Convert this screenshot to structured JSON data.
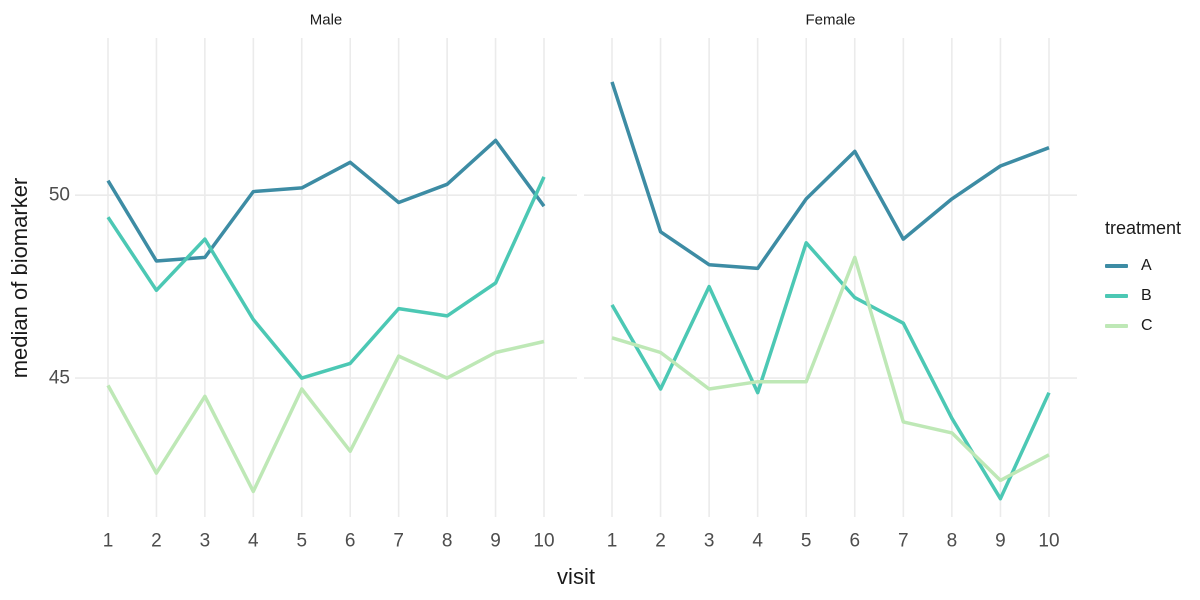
{
  "figure": {
    "background": "#ffffff",
    "grid_color": "#ebebeb",
    "tick_text_color": "#4d4d4d",
    "title_text_color": "#1a1a1a"
  },
  "legend": {
    "title": "treatment",
    "entries": [
      {
        "label": "A",
        "color": "#3d8ca4"
      },
      {
        "label": "B",
        "color": "#4cc8b4"
      },
      {
        "label": "C",
        "color": "#bee8b6"
      }
    ]
  },
  "chart_data": {
    "type": "line",
    "x": [
      1,
      2,
      3,
      4,
      5,
      6,
      7,
      8,
      9,
      10
    ],
    "xlabel": "visit",
    "ylabel": "median of biomarker",
    "ylim": [
      41.2,
      54.3
    ],
    "yticks": [
      45,
      50
    ],
    "grid": "major-only",
    "legend_title": "treatment",
    "legend_position": "right",
    "facets": [
      {
        "label": "Male",
        "series": [
          {
            "name": "A",
            "color": "#3d8ca4",
            "values": [
              50.4,
              48.2,
              48.3,
              50.1,
              50.2,
              50.9,
              49.8,
              50.3,
              51.5,
              49.7
            ]
          },
          {
            "name": "B",
            "color": "#4cc8b4",
            "values": [
              49.4,
              47.4,
              48.8,
              46.6,
              45.0,
              45.4,
              46.9,
              46.7,
              47.6,
              50.5
            ]
          },
          {
            "name": "C",
            "color": "#bee8b6",
            "values": [
              44.8,
              42.4,
              44.5,
              41.9,
              44.7,
              43.0,
              45.6,
              45.0,
              45.7,
              46.0
            ]
          }
        ]
      },
      {
        "label": "Female",
        "series": [
          {
            "name": "A",
            "color": "#3d8ca4",
            "values": [
              53.1,
              49.0,
              48.1,
              48.0,
              49.9,
              51.2,
              48.8,
              49.9,
              50.8,
              51.3
            ]
          },
          {
            "name": "B",
            "color": "#4cc8b4",
            "values": [
              47.0,
              44.7,
              47.5,
              44.6,
              48.7,
              47.2,
              46.5,
              43.9,
              41.7,
              44.6
            ]
          },
          {
            "name": "C",
            "color": "#bee8b6",
            "values": [
              46.1,
              45.7,
              44.7,
              44.9,
              44.9,
              48.3,
              43.8,
              43.5,
              42.2,
              42.9
            ]
          }
        ]
      }
    ]
  }
}
